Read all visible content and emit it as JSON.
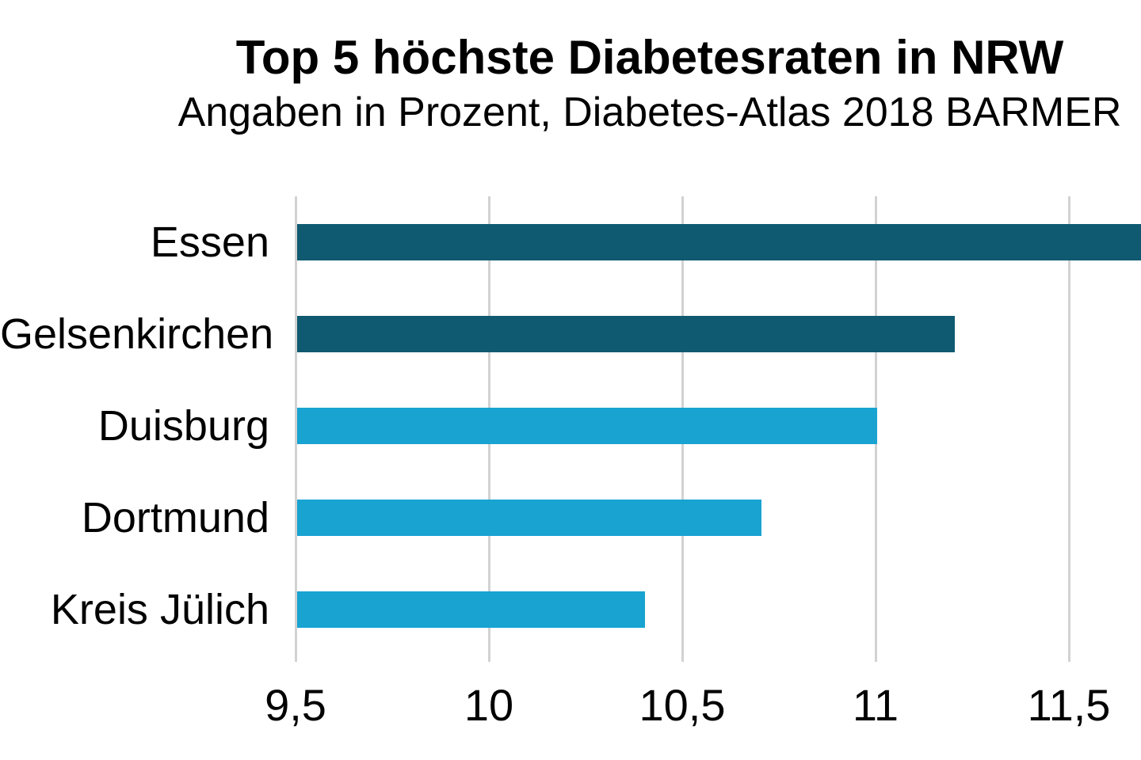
{
  "chart_data": {
    "type": "bar",
    "orientation": "horizontal",
    "title": "Top 5 höchste Diabetesraten in NRW",
    "subtitle": "Angaben in Prozent, Diabetes-Atlas 2018 BARMER",
    "categories": [
      "Essen",
      "Gelsenkirchen",
      "Duisburg",
      "Dortmund",
      "Kreis Jülich"
    ],
    "values": [
      11.7,
      11.2,
      11.0,
      10.7,
      10.4
    ],
    "bar_colors": [
      "#0F5A70",
      "#0F5A70",
      "#18A3D1",
      "#18A3D1",
      "#18A3D1"
    ],
    "x_axis": {
      "min": 9.5,
      "max_visible": 11.68,
      "ticks": [
        9.5,
        10,
        10.5,
        11,
        11.5
      ],
      "tick_labels": [
        "9,5",
        "10",
        "10,5",
        "11",
        "11,5"
      ]
    },
    "ylabel": "",
    "xlabel": "",
    "grid": "vertical-gridlines-on",
    "legend": "none",
    "colors": {
      "dark_teal": "#0F5A70",
      "light_blue": "#18A3D1",
      "gridline": "#D2D2D2",
      "text": "#000000",
      "background": "#FFFFFF"
    }
  }
}
